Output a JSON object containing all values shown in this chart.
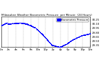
{
  "title": "Milwaukee Weather Barometric Pressure  per Minute  (24 Hours)",
  "title_fontsize": 3.0,
  "dot_color": "#0000FF",
  "dot_size": 0.3,
  "bg_color": "#FFFFFF",
  "grid_color": "#999999",
  "border_color": "#000000",
  "ylim": [
    29.3,
    30.35
  ],
  "ytick_values": [
    29.35,
    29.5,
    29.65,
    29.8,
    29.95,
    30.1,
    30.25
  ],
  "ytick_labels": [
    "29.35",
    "29.50",
    "29.65",
    "29.80",
    "29.95",
    "30.10",
    "30.25"
  ],
  "xtick_minutes": [
    0,
    120,
    240,
    360,
    480,
    600,
    720,
    840,
    960,
    1080,
    1200,
    1320,
    1440
  ],
  "xtick_labels": [
    "12a",
    "2a",
    "4a",
    "6a",
    "8a",
    "10a",
    "12p",
    "2p",
    "4p",
    "6p",
    "8p",
    "10p",
    "12a"
  ],
  "xlabel_fontsize": 2.8,
  "ylabel_fontsize": 2.8,
  "legend_color": "#0000FF",
  "legend_label": "Barometric Pressure",
  "legend_fontsize": 2.8,
  "num_points": 1440,
  "noise_std": 0.006
}
